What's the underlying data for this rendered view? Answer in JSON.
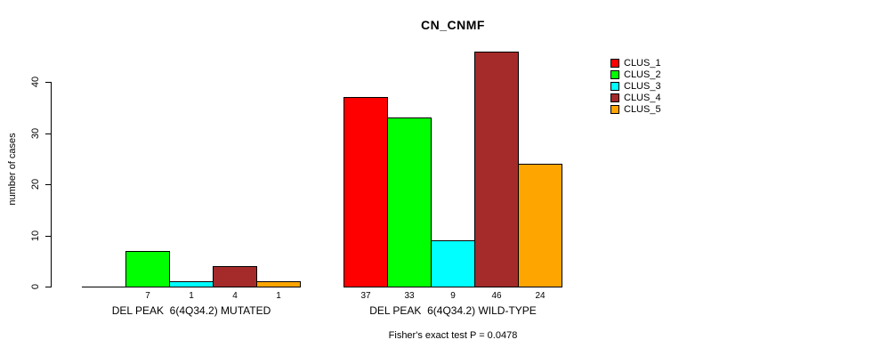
{
  "chart_data": {
    "type": "bar",
    "title": "CN_CNMF",
    "ylabel": "number of cases",
    "ylim": [
      0,
      46
    ],
    "yticks": [
      0,
      10,
      20,
      30,
      40
    ],
    "grid": false,
    "categories": [
      "CLUS_1",
      "CLUS_2",
      "CLUS_3",
      "CLUS_4",
      "CLUS_5"
    ],
    "colors": [
      "#ff0000",
      "#00ff00",
      "#00ffff",
      "#a52a2a",
      "#ffa500"
    ],
    "groups": [
      {
        "label": "DEL PEAK  6(4Q34.2) MUTATED",
        "values": [
          0,
          7,
          1,
          4,
          1
        ],
        "value_labels": [
          "",
          "7",
          "1",
          "4",
          "1"
        ]
      },
      {
        "label": "DEL PEAK  6(4Q34.2) WILD-TYPE",
        "values": [
          37,
          33,
          9,
          46,
          24
        ],
        "value_labels": [
          "37",
          "33",
          "9",
          "46",
          "24"
        ]
      }
    ],
    "annotation": "Fisher's exact test P = 0.0478",
    "legend": {
      "position": "top-right",
      "entries": [
        {
          "label": "CLUS_1",
          "color": "#ff0000"
        },
        {
          "label": "CLUS_2",
          "color": "#00ff00"
        },
        {
          "label": "CLUS_3",
          "color": "#00ffff"
        },
        {
          "label": "CLUS_4",
          "color": "#a52a2a"
        },
        {
          "label": "CLUS_5",
          "color": "#ffa500"
        }
      ]
    }
  }
}
